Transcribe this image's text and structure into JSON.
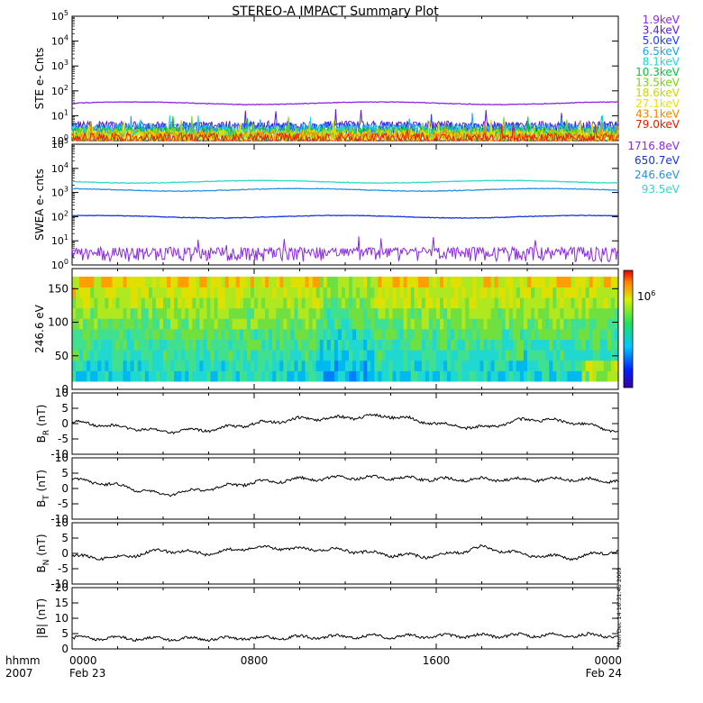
{
  "title": "STEREO-A IMPACT Summary Plot",
  "side_note": "Mon Dec 14 16:31:48 2009",
  "colors": {
    "magnetic_trace": "#000000",
    "ste_energies": [
      "#8a2be2",
      "#5a1fc8",
      "#1f3fff",
      "#1ea4e8",
      "#20d8d8",
      "#10c040",
      "#7ad020",
      "#c8d800",
      "#f0e000",
      "#f08800",
      "#e02000"
    ],
    "swea_energies": [
      "#8a2be2",
      "#1535e0",
      "#2a90e0",
      "#30d8c8"
    ]
  },
  "chart_data": [
    {
      "panel": "ste",
      "type": "line",
      "ylabel": "STE e- Cnts",
      "yscale": "log",
      "ylim": [
        1,
        100000
      ],
      "ytick_exponents": [
        "0",
        "1",
        "2",
        "3",
        "4",
        "5"
      ],
      "series": [
        {
          "name": "1.9keV",
          "level": 32
        },
        {
          "name": "3.4keV",
          "level": 3.4
        },
        {
          "name": "5.0keV",
          "level": 3.0
        },
        {
          "name": "6.5keV",
          "level": 2.6
        },
        {
          "name": "8.1keV",
          "level": 2.3
        },
        {
          "name": "10.3keV",
          "level": 2.0
        },
        {
          "name": "13.5keV",
          "level": 1.8
        },
        {
          "name": "18.6keV",
          "level": 1.6
        },
        {
          "name": "27.1keV",
          "level": 1.4
        },
        {
          "name": "43.1keV",
          "level": 1.25
        },
        {
          "name": "79.0keV",
          "level": 1.1
        }
      ]
    },
    {
      "panel": "swea",
      "type": "line",
      "ylabel": "SWEA e- cnts",
      "yscale": "log",
      "ylim": [
        1,
        100000
      ],
      "ytick_exponents": [
        "0",
        "1",
        "2",
        "3",
        "4",
        "5"
      ],
      "series": [
        {
          "name": "1716.8eV",
          "level": 3
        },
        {
          "name": "650.7eV",
          "level": 100
        },
        {
          "name": "246.6eV",
          "level": 1300
        },
        {
          "name": "93.5eV",
          "level": 2800
        }
      ]
    },
    {
      "panel": "pad",
      "type": "heatmap",
      "ylabel": "246.6 eV",
      "ylim": [
        0,
        180
      ],
      "yticks": [
        "0",
        "50",
        "100",
        "150"
      ],
      "colorbar_label": "10",
      "colorbar_exponent": "6"
    },
    {
      "panel": "br",
      "type": "line",
      "ylabel_main": "B",
      "ylabel_sub": "R",
      "ylabel_unit": " (nT)",
      "ylim": [
        -10,
        10
      ],
      "yticks": [
        "10",
        "5",
        "0",
        "-5",
        "-10"
      ],
      "x": [
        "00:00",
        "02:00",
        "04:00",
        "06:00",
        "08:00",
        "10:00",
        "12:00",
        "14:00",
        "16:00",
        "18:00",
        "20:00",
        "22:00",
        "24:00"
      ],
      "values": [
        0.5,
        -1,
        -2.5,
        -2,
        0,
        1.5,
        2,
        2.5,
        0,
        -1.5,
        1.5,
        0.5,
        -2.5
      ]
    },
    {
      "panel": "bt",
      "type": "line",
      "ylabel_main": "B",
      "ylabel_sub": "T",
      "ylabel_unit": " (nT)",
      "ylim": [
        -10,
        10
      ],
      "yticks": [
        "10",
        "5",
        "0",
        "-5",
        "-10"
      ],
      "x": [
        "00:00",
        "02:00",
        "04:00",
        "06:00",
        "08:00",
        "10:00",
        "12:00",
        "14:00",
        "16:00",
        "18:00",
        "20:00",
        "22:00",
        "24:00"
      ],
      "values": [
        3,
        1,
        -2,
        0,
        2,
        3,
        3.5,
        3.5,
        3,
        3,
        3,
        3,
        2.5
      ]
    },
    {
      "panel": "bn",
      "type": "line",
      "ylabel_main": "B",
      "ylabel_sub": "N",
      "ylabel_unit": " (nT)",
      "ylim": [
        -10,
        10
      ],
      "yticks": [
        "10",
        "5",
        "0",
        "-5",
        "-10"
      ],
      "x": [
        "00:00",
        "02:00",
        "04:00",
        "06:00",
        "08:00",
        "10:00",
        "12:00",
        "14:00",
        "16:00",
        "18:00",
        "20:00",
        "22:00",
        "24:00"
      ],
      "values": [
        -1,
        -1.5,
        1,
        0,
        2,
        1.5,
        1,
        -0.5,
        -1,
        2,
        -0.5,
        -1.5,
        1
      ]
    },
    {
      "panel": "bmag",
      "type": "line",
      "ylabel_main": "|B|",
      "ylabel_sub": "",
      "ylabel_unit": " (nT)",
      "ylim": [
        0,
        20
      ],
      "yticks": [
        "20",
        "15",
        "10",
        "5",
        "0"
      ],
      "x": [
        "00:00",
        "02:00",
        "04:00",
        "06:00",
        "08:00",
        "10:00",
        "12:00",
        "14:00",
        "16:00",
        "18:00",
        "20:00",
        "22:00",
        "24:00"
      ],
      "values": [
        3.5,
        3.5,
        3.3,
        3.4,
        3.6,
        3.8,
        4,
        4.1,
        4.2,
        4.3,
        4.4,
        4.5,
        4.3
      ]
    }
  ],
  "x_axis": {
    "corner_top": "hhmm",
    "corner_bottom": "2007",
    "ticks": [
      {
        "time": "0000",
        "date": "Feb 23"
      },
      {
        "time": "0800",
        "date": ""
      },
      {
        "time": "1600",
        "date": ""
      },
      {
        "time": "0000",
        "date": "Feb 24"
      }
    ]
  }
}
